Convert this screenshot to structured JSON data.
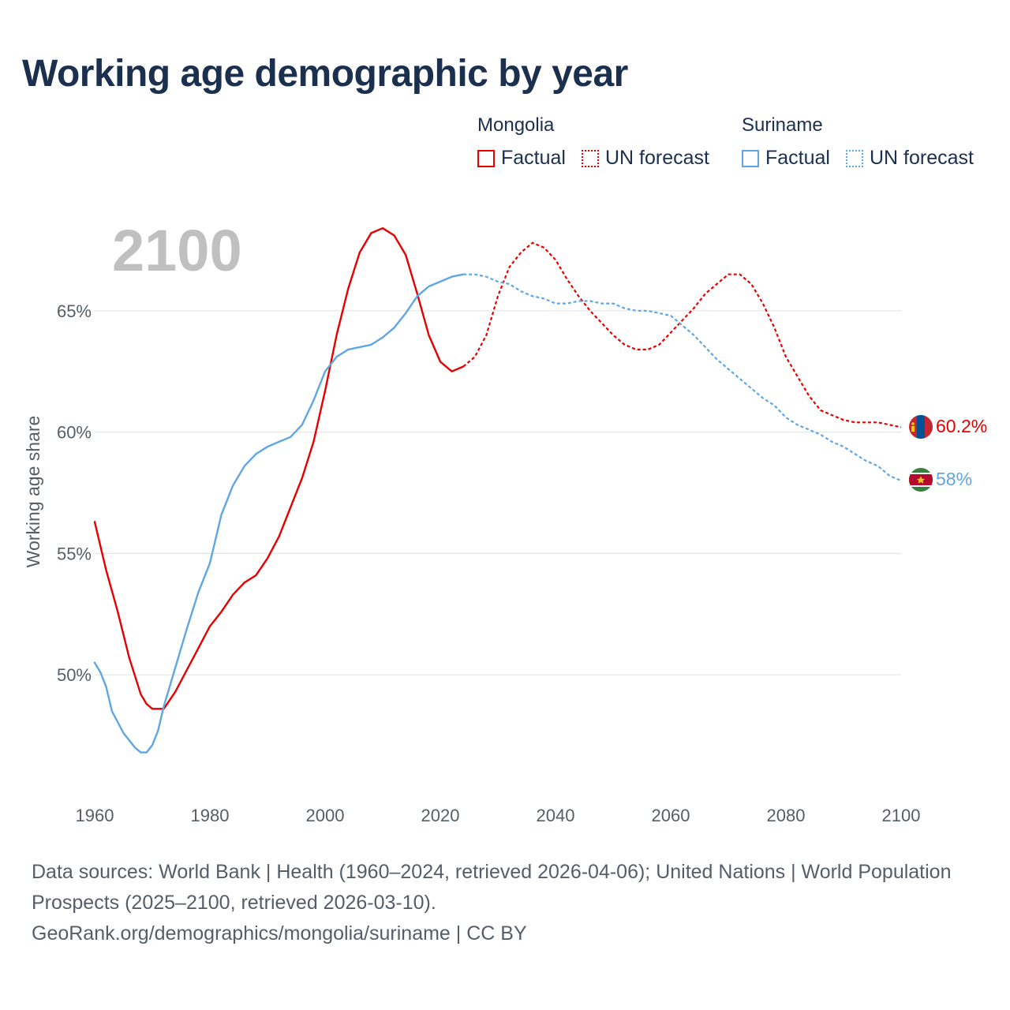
{
  "title": "Working age demographic by year",
  "legend": {
    "groups": [
      {
        "country": "Mongolia",
        "factual": "Factual",
        "forecast": "UN forecast",
        "color": "#e60000"
      },
      {
        "country": "Suriname",
        "factual": "Factual",
        "forecast": "UN forecast",
        "color": "#5fa6e4"
      }
    ]
  },
  "footer": {
    "sources": "Data sources: World Bank | Health (1960–2024, retrieved 2026-04-06); United Nations | World Population Prospects (2025–2100, retrieved 2026-03-10).",
    "credit": "GeoRank.org/demographics/mongolia/suriname | CC BY"
  },
  "chart_data": {
    "type": "line",
    "year_display": "2100",
    "ylabel": "Working age share",
    "xlim": [
      1960,
      2100
    ],
    "ylim": [
      45.0,
      70.0
    ],
    "x_ticks": [
      1960,
      1980,
      2000,
      2020,
      2040,
      2060,
      2080,
      2100
    ],
    "y_ticks": [
      50,
      55,
      60,
      65
    ],
    "y_tick_labels": [
      "50%",
      "55%",
      "60%",
      "65%"
    ],
    "grid": true,
    "series": [
      {
        "name": "Mongolia",
        "color": "#e60000",
        "end_label": "60.2%",
        "factual": [
          [
            1960,
            56.3
          ],
          [
            1962,
            54.3
          ],
          [
            1964,
            52.6
          ],
          [
            1966,
            50.7
          ],
          [
            1968,
            49.2
          ],
          [
            1969,
            48.8
          ],
          [
            1970,
            48.6
          ],
          [
            1972,
            48.6
          ],
          [
            1974,
            49.3
          ],
          [
            1976,
            50.2
          ],
          [
            1978,
            51.1
          ],
          [
            1980,
            52.0
          ],
          [
            1982,
            52.6
          ],
          [
            1984,
            53.3
          ],
          [
            1986,
            53.8
          ],
          [
            1988,
            54.1
          ],
          [
            1990,
            54.8
          ],
          [
            1992,
            55.7
          ],
          [
            1994,
            56.9
          ],
          [
            1996,
            58.1
          ],
          [
            1998,
            59.6
          ],
          [
            2000,
            61.7
          ],
          [
            2002,
            64.0
          ],
          [
            2004,
            65.9
          ],
          [
            2006,
            67.4
          ],
          [
            2008,
            68.2
          ],
          [
            2010,
            68.4
          ],
          [
            2012,
            68.1
          ],
          [
            2014,
            67.3
          ],
          [
            2016,
            65.7
          ],
          [
            2018,
            64.0
          ],
          [
            2020,
            62.9
          ],
          [
            2022,
            62.5
          ],
          [
            2024,
            62.7
          ]
        ],
        "forecast": [
          [
            2024,
            62.7
          ],
          [
            2026,
            63.1
          ],
          [
            2028,
            64.0
          ],
          [
            2030,
            65.6
          ],
          [
            2032,
            66.8
          ],
          [
            2034,
            67.4
          ],
          [
            2036,
            67.8
          ],
          [
            2038,
            67.6
          ],
          [
            2040,
            67.1
          ],
          [
            2042,
            66.3
          ],
          [
            2044,
            65.6
          ],
          [
            2046,
            65.0
          ],
          [
            2048,
            64.5
          ],
          [
            2050,
            64.0
          ],
          [
            2052,
            63.6
          ],
          [
            2054,
            63.4
          ],
          [
            2056,
            63.4
          ],
          [
            2058,
            63.6
          ],
          [
            2060,
            64.1
          ],
          [
            2062,
            64.6
          ],
          [
            2064,
            65.1
          ],
          [
            2066,
            65.7
          ],
          [
            2068,
            66.1
          ],
          [
            2070,
            66.5
          ],
          [
            2072,
            66.5
          ],
          [
            2074,
            66.1
          ],
          [
            2076,
            65.3
          ],
          [
            2078,
            64.3
          ],
          [
            2080,
            63.1
          ],
          [
            2082,
            62.3
          ],
          [
            2084,
            61.5
          ],
          [
            2086,
            60.9
          ],
          [
            2088,
            60.7
          ],
          [
            2090,
            60.5
          ],
          [
            2092,
            60.4
          ],
          [
            2094,
            60.4
          ],
          [
            2096,
            60.4
          ],
          [
            2098,
            60.3
          ],
          [
            2100,
            60.2
          ]
        ]
      },
      {
        "name": "Suriname",
        "color": "#5fa6e4",
        "end_label": "58%",
        "factual": [
          [
            1960,
            50.5
          ],
          [
            1961,
            50.1
          ],
          [
            1962,
            49.5
          ],
          [
            1963,
            48.5
          ],
          [
            1965,
            47.6
          ],
          [
            1967,
            47.0
          ],
          [
            1968,
            46.8
          ],
          [
            1969,
            46.8
          ],
          [
            1970,
            47.1
          ],
          [
            1971,
            47.7
          ],
          [
            1972,
            48.7
          ],
          [
            1974,
            50.3
          ],
          [
            1976,
            51.9
          ],
          [
            1978,
            53.4
          ],
          [
            1980,
            54.6
          ],
          [
            1982,
            56.6
          ],
          [
            1984,
            57.8
          ],
          [
            1986,
            58.6
          ],
          [
            1988,
            59.1
          ],
          [
            1990,
            59.4
          ],
          [
            1992,
            59.6
          ],
          [
            1994,
            59.8
          ],
          [
            1996,
            60.3
          ],
          [
            1998,
            61.3
          ],
          [
            2000,
            62.5
          ],
          [
            2002,
            63.1
          ],
          [
            2004,
            63.4
          ],
          [
            2006,
            63.5
          ],
          [
            2008,
            63.6
          ],
          [
            2010,
            63.9
          ],
          [
            2012,
            64.3
          ],
          [
            2014,
            64.9
          ],
          [
            2016,
            65.6
          ],
          [
            2018,
            66.0
          ],
          [
            2020,
            66.2
          ],
          [
            2022,
            66.4
          ],
          [
            2024,
            66.5
          ]
        ],
        "forecast": [
          [
            2024,
            66.5
          ],
          [
            2026,
            66.5
          ],
          [
            2028,
            66.4
          ],
          [
            2030,
            66.2
          ],
          [
            2032,
            66.1
          ],
          [
            2034,
            65.8
          ],
          [
            2036,
            65.6
          ],
          [
            2038,
            65.5
          ],
          [
            2040,
            65.3
          ],
          [
            2042,
            65.3
          ],
          [
            2044,
            65.4
          ],
          [
            2046,
            65.4
          ],
          [
            2048,
            65.3
          ],
          [
            2050,
            65.3
          ],
          [
            2052,
            65.1
          ],
          [
            2054,
            65.0
          ],
          [
            2056,
            65.0
          ],
          [
            2058,
            64.9
          ],
          [
            2060,
            64.8
          ],
          [
            2062,
            64.4
          ],
          [
            2064,
            64.0
          ],
          [
            2066,
            63.5
          ],
          [
            2068,
            63.0
          ],
          [
            2070,
            62.6
          ],
          [
            2072,
            62.2
          ],
          [
            2074,
            61.8
          ],
          [
            2076,
            61.4
          ],
          [
            2078,
            61.1
          ],
          [
            2080,
            60.6
          ],
          [
            2082,
            60.3
          ],
          [
            2084,
            60.1
          ],
          [
            2086,
            59.9
          ],
          [
            2088,
            59.6
          ],
          [
            2090,
            59.4
          ],
          [
            2092,
            59.1
          ],
          [
            2094,
            58.8
          ],
          [
            2096,
            58.6
          ],
          [
            2098,
            58.2
          ],
          [
            2100,
            58.0
          ]
        ]
      }
    ]
  }
}
